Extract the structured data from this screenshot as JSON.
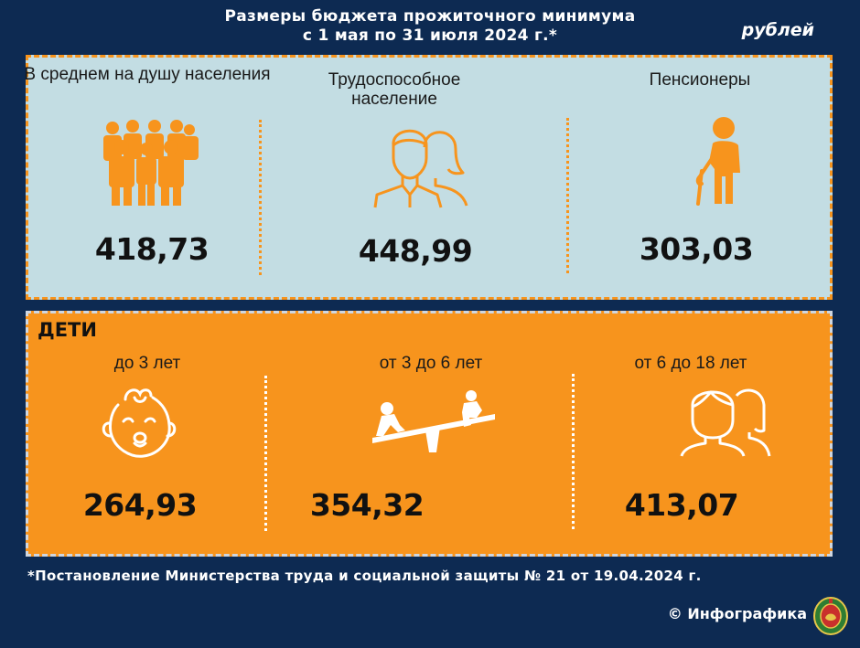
{
  "header": {
    "title_line1": "Размеры бюджета прожиточного минимума",
    "title_line2": "с 1 мая по 31 июля 2024 г.*",
    "unit": "рублей"
  },
  "adults": [
    {
      "label": "В среднем на душу населения",
      "value": "418,73",
      "icon": "people-group-icon"
    },
    {
      "label": "Трудоспособное население",
      "value": "448,99",
      "icon": "couple-icon"
    },
    {
      "label": "Пенсионеры",
      "value": "303,03",
      "icon": "elderly-person-icon"
    }
  ],
  "children": {
    "heading": "ДЕТИ",
    "groups": [
      {
        "label": "до 3 лет",
        "value": "264,93",
        "icon": "baby-face-icon"
      },
      {
        "label": "от 3 до 6 лет",
        "value": "354,32",
        "icon": "seesaw-icon"
      },
      {
        "label": "от 6 до 18 лет",
        "value": "413,07",
        "icon": "kids-icon"
      }
    ]
  },
  "footer": {
    "footnote": "*Постановление Министерства труда и социальной защиты № 21 от 19.04.2024 г.",
    "credit": "© Инфографика"
  },
  "colors": {
    "background": "#0d2a52",
    "orange": "#f7941d",
    "light_panel": "#c3dde3"
  }
}
